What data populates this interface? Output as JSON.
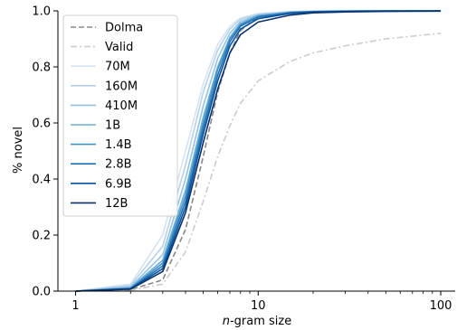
{
  "chart_data": {
    "type": "line",
    "xlabel_prefix": "n",
    "xlabel_suffix": "-gram size",
    "ylabel": "% novel",
    "x_scale": "log",
    "xlim": [
      0.8,
      120
    ],
    "ylim": [
      0,
      1.0
    ],
    "x_ticks": [
      1,
      10,
      100
    ],
    "x_tick_labels": [
      "1",
      "10",
      "100"
    ],
    "y_ticks": [
      0.0,
      0.2,
      0.4,
      0.6,
      0.8,
      1.0
    ],
    "y_tick_labels": [
      "0.0",
      "0.2",
      "0.4",
      "0.6",
      "0.8",
      "1.0"
    ],
    "grid": false,
    "legend_position": "upper-left",
    "series": [
      {
        "name": "Dolma",
        "color": "#888888",
        "dash": "dashed",
        "x": [
          1,
          2,
          3,
          4,
          5,
          6,
          7,
          8,
          10,
          15,
          20,
          30,
          50,
          100
        ],
        "y": [
          0.0,
          0.005,
          0.04,
          0.22,
          0.48,
          0.71,
          0.85,
          0.93,
          0.98,
          0.995,
          0.998,
          0.999,
          1.0,
          1.0
        ]
      },
      {
        "name": "Valid",
        "color": "#cccccc",
        "dash": "dashdot",
        "x": [
          1,
          2,
          3,
          4,
          5,
          6,
          7,
          8,
          10,
          15,
          20,
          30,
          50,
          100
        ],
        "y": [
          0.0,
          0.003,
          0.025,
          0.14,
          0.32,
          0.48,
          0.59,
          0.67,
          0.75,
          0.82,
          0.85,
          0.875,
          0.9,
          0.92
        ]
      },
      {
        "name": "70M",
        "color": "#d4e4f2",
        "dash": "solid",
        "x": [
          1,
          2,
          3,
          4,
          5,
          6,
          7,
          8,
          10,
          15,
          20,
          30,
          50,
          100
        ],
        "y": [
          0.0,
          0.025,
          0.2,
          0.5,
          0.74,
          0.88,
          0.945,
          0.975,
          0.99,
          0.998,
          0.999,
          1.0,
          1.0,
          1.0
        ]
      },
      {
        "name": "160M",
        "color": "#b6d2ea",
        "dash": "solid",
        "x": [
          1,
          2,
          3,
          4,
          5,
          6,
          7,
          8,
          10,
          15,
          20,
          30,
          50,
          100
        ],
        "y": [
          0.0,
          0.02,
          0.16,
          0.45,
          0.71,
          0.86,
          0.935,
          0.97,
          0.988,
          0.997,
          0.999,
          1.0,
          1.0,
          1.0
        ]
      },
      {
        "name": "410M",
        "color": "#94c2e2",
        "dash": "solid",
        "x": [
          1,
          2,
          3,
          4,
          5,
          6,
          7,
          8,
          10,
          15,
          20,
          30,
          50,
          100
        ],
        "y": [
          0.0,
          0.015,
          0.13,
          0.4,
          0.66,
          0.83,
          0.92,
          0.962,
          0.985,
          0.996,
          0.998,
          1.0,
          1.0,
          1.0
        ]
      },
      {
        "name": "1B",
        "color": "#6baed6",
        "dash": "solid",
        "x": [
          1,
          2,
          3,
          4,
          5,
          6,
          7,
          8,
          10,
          15,
          20,
          30,
          50,
          100
        ],
        "y": [
          0.0,
          0.012,
          0.11,
          0.36,
          0.62,
          0.8,
          0.905,
          0.955,
          0.983,
          0.995,
          0.998,
          0.999,
          1.0,
          1.0
        ]
      },
      {
        "name": "1.4B",
        "color": "#4292c6",
        "dash": "solid",
        "x": [
          1,
          2,
          3,
          4,
          5,
          6,
          7,
          8,
          10,
          15,
          20,
          30,
          50,
          100
        ],
        "y": [
          0.0,
          0.01,
          0.1,
          0.34,
          0.6,
          0.79,
          0.9,
          0.95,
          0.98,
          0.994,
          0.997,
          0.999,
          1.0,
          1.0
        ]
      },
      {
        "name": "2.8B",
        "color": "#2171b5",
        "dash": "solid",
        "x": [
          1,
          2,
          3,
          4,
          5,
          6,
          7,
          8,
          10,
          15,
          20,
          30,
          50,
          100
        ],
        "y": [
          0.0,
          0.009,
          0.09,
          0.32,
          0.58,
          0.77,
          0.89,
          0.945,
          0.978,
          0.993,
          0.997,
          0.999,
          1.0,
          1.0
        ]
      },
      {
        "name": "6.9B",
        "color": "#08519c",
        "dash": "solid",
        "x": [
          1,
          2,
          3,
          4,
          5,
          6,
          7,
          8,
          10,
          15,
          20,
          30,
          50,
          100
        ],
        "y": [
          0.0,
          0.008,
          0.08,
          0.3,
          0.56,
          0.75,
          0.875,
          0.935,
          0.972,
          0.991,
          0.996,
          0.998,
          0.999,
          1.0
        ]
      },
      {
        "name": "12B",
        "color": "#08306b",
        "dash": "solid",
        "x": [
          1,
          2,
          3,
          4,
          5,
          6,
          7,
          8,
          10,
          15,
          20,
          30,
          50,
          100
        ],
        "y": [
          0.0,
          0.007,
          0.07,
          0.28,
          0.53,
          0.72,
          0.85,
          0.915,
          0.96,
          0.985,
          0.993,
          0.996,
          0.998,
          0.999
        ]
      }
    ]
  }
}
